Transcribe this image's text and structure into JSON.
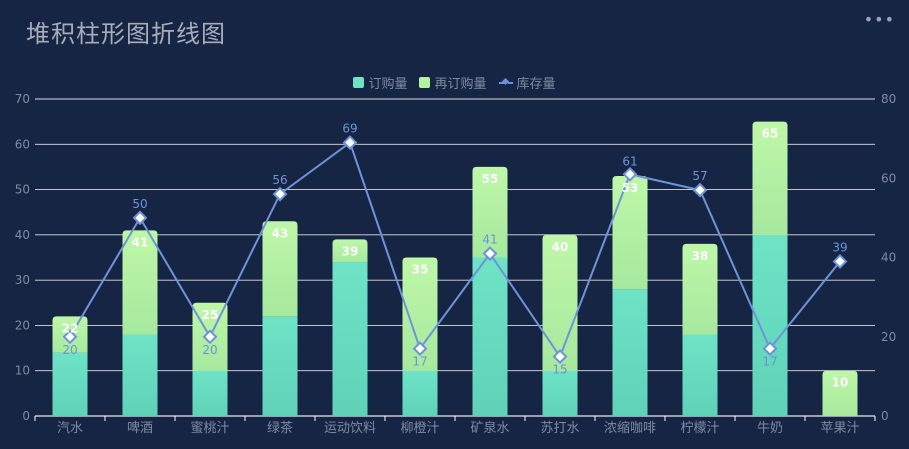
{
  "title": "堆积柱形图折线图",
  "menu_icon": "more-horizontal-icon",
  "legend": [
    {
      "label": "订购量",
      "color": "#6ee3c6",
      "kind": "bar"
    },
    {
      "label": "再订购量",
      "color": "#b5f3a0",
      "kind": "bar"
    },
    {
      "label": "库存量",
      "color": "#6f93d8",
      "kind": "line"
    }
  ],
  "chart_data": {
    "type": "bar",
    "categories": [
      "汽水",
      "啤酒",
      "蜜桃汁",
      "绿茶",
      "运动饮料",
      "柳橙汁",
      "矿泉水",
      "苏打水",
      "浓缩咖啡",
      "柠檬汁",
      "牛奶",
      "苹果汁"
    ],
    "series": [
      {
        "name": "订购量",
        "type": "bar",
        "stack": "total",
        "values": [
          14,
          18,
          10,
          22,
          34,
          10,
          35,
          10,
          28,
          18,
          40,
          0
        ]
      },
      {
        "name": "再订购量",
        "type": "bar",
        "stack": "total",
        "values": [
          8,
          23,
          15,
          21,
          5,
          25,
          20,
          30,
          25,
          20,
          25,
          10
        ]
      },
      {
        "name": "库存量",
        "type": "line",
        "axis": "right",
        "values": [
          20,
          50,
          20,
          56,
          69,
          17,
          41,
          15,
          61,
          57,
          17,
          39
        ]
      }
    ],
    "stack_totals": [
      22,
      41,
      25,
      43,
      39,
      35,
      55,
      40,
      53,
      38,
      65,
      10
    ],
    "y_left": {
      "min": 0,
      "max": 70,
      "ticks": [
        0,
        10,
        20,
        30,
        40,
        50,
        60,
        70
      ]
    },
    "y_right": {
      "min": 0,
      "max": 80,
      "ticks": [
        0,
        20,
        40,
        60,
        80
      ]
    },
    "colors": {
      "order_top": "#6ee3c6",
      "order_bottom": "#5fd2b8",
      "reorder_top": "#bff7a8",
      "reorder_bottom": "#a6e99e",
      "line": "#6f93d8",
      "grid": "#ffffff",
      "axis_text": "#7f8aa3"
    }
  }
}
